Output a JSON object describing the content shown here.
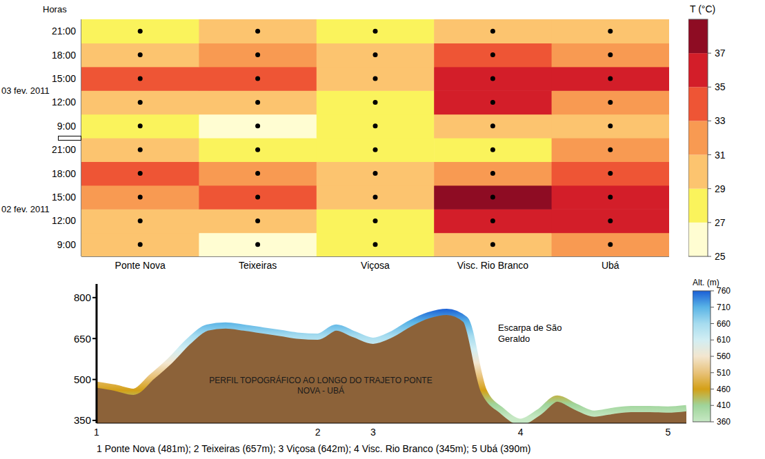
{
  "chart_data": [
    {
      "type": "heatmap",
      "y_title": "Horas",
      "categories": [
        "Ponte Nova",
        "Teixeiras",
        "Viçosa",
        "Visc. Rio Branco",
        "Ubá"
      ],
      "days": [
        {
          "label": "02 fev. 2011",
          "times": [
            "9:00",
            "12:00",
            "15:00",
            "18:00",
            "21:00"
          ],
          "values": [
            [
              29.5,
              26.5,
              28,
              30.5,
              32
            ],
            [
              30,
              30,
              28.5,
              35.5,
              35.5
            ],
            [
              32,
              33.5,
              29.5,
              37.2,
              35.5
            ],
            [
              33.2,
              31.5,
              29.5,
              32,
              34
            ],
            [
              30,
              27.5,
              28.5,
              28,
              31.5
            ]
          ]
        },
        {
          "label": "03 fev. 2011",
          "times": [
            "9:00",
            "12:00",
            "15:00",
            "18:00",
            "21:00"
          ],
          "values": [
            [
              28.5,
              26,
              28,
              30.5,
              30
            ],
            [
              30.5,
              29.5,
              28.5,
              35.5,
              32.5
            ],
            [
              33.5,
              33.5,
              29.5,
              36,
              35.5
            ],
            [
              30.5,
              31.5,
              30,
              34,
              32
            ],
            [
              28.5,
              30,
              28.5,
              30.5,
              30
            ]
          ]
        }
      ],
      "colorbar": {
        "title": "T (°C)",
        "range": [
          25,
          39
        ],
        "ticks": [
          25,
          27,
          29,
          31,
          33,
          35,
          37
        ],
        "colors": [
          "#fffdd2",
          "#faf35c",
          "#fcc46f",
          "#f89a52",
          "#ee5535",
          "#d31e29",
          "#8e0c23"
        ]
      }
    },
    {
      "type": "area",
      "categories": [
        "1",
        null,
        null,
        null,
        null,
        null,
        null,
        null,
        null,
        null,
        null,
        null,
        "2",
        null,
        null,
        "3",
        null,
        null,
        null,
        null,
        null,
        null,
        null,
        "4",
        null,
        null,
        null,
        null,
        null,
        null,
        null,
        "5",
        null
      ],
      "values": [
        481,
        470,
        455,
        510,
        570,
        640,
        690,
        698,
        690,
        680,
        670,
        660,
        657,
        690,
        665,
        642,
        665,
        705,
        735,
        748,
        720,
        460,
        385,
        345,
        380,
        430,
        400,
        375,
        385,
        392,
        392,
        390,
        395
      ],
      "ylim": [
        340,
        850
      ],
      "yticks": [
        350,
        500,
        650,
        800
      ],
      "color": "#8c6239",
      "annotations": [
        "PERFIL TOPOGRÁFICO AO LONGO DO TRAJETO PONTE NOVA - UBÁ",
        "Escarpa de São Geraldo"
      ],
      "caption": "1 Ponte Nova (481m); 2 Teixeiras (657m); 3 Viçosa (642m); 4 Visc. Rio Branco (345m); 5 Ubá (390m)",
      "colorbar": {
        "title": "Alt. (m)",
        "range": [
          360,
          760
        ],
        "ticks": [
          360,
          410,
          460,
          510,
          560,
          610,
          660,
          710,
          760
        ],
        "colors": [
          "#c6e8c4",
          "#9fd49a",
          "#d4a017",
          "#e8c27a",
          "#f3e6cf",
          "#d2eef3",
          "#a6dcef",
          "#5ab4e6",
          "#1a5fd6"
        ]
      }
    }
  ]
}
